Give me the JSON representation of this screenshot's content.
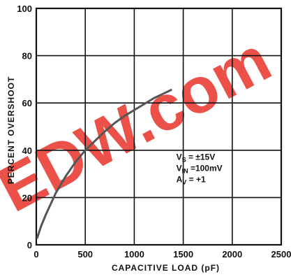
{
  "chart_data": {
    "type": "line",
    "xlabel": "CAPACITIVE LOAD (pF)",
    "ylabel": "PERCENT OVERSHOOT",
    "xlim": [
      0,
      2500
    ],
    "ylim": [
      0,
      100
    ],
    "x_ticks": [
      "0",
      "500",
      "1000",
      "1500",
      "2000",
      "2500"
    ],
    "y_ticks": [
      "0",
      "20",
      "40",
      "60",
      "80",
      "100"
    ],
    "grid": true,
    "series": [
      {
        "color": "#555555",
        "x": [
          10,
          50,
          100,
          200,
          300,
          400,
          500,
          600,
          700,
          800,
          900,
          1000,
          1100,
          1200,
          1300,
          1375
        ],
        "y": [
          3,
          8,
          13,
          22,
          29,
          35,
          40,
          44,
          48,
          51.5,
          54.5,
          57,
          59.5,
          62,
          64,
          65.5
        ]
      }
    ],
    "annotations": [
      {
        "main": "V",
        "sub": "S",
        "rest": " = ±15V"
      },
      {
        "main": "V",
        "sub": "IN",
        "rest": " =100mV"
      },
      {
        "main": "A",
        "sub": "V",
        "rest": " = +1"
      }
    ]
  },
  "watermark": {
    "text": "EDW.com",
    "color": "#e8332a"
  }
}
